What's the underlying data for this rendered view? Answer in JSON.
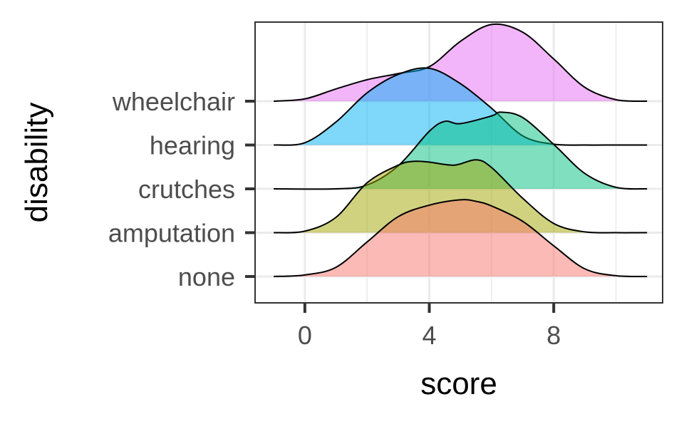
{
  "chart_data": {
    "type": "ridgeline",
    "xlabel": "score",
    "ylabel": "disability",
    "xlim": [
      -1.6,
      11.5
    ],
    "x_ticks": [
      0,
      4,
      8
    ],
    "grid": true,
    "categories": [
      "none",
      "amputation",
      "crutches",
      "hearing",
      "wheelchair"
    ],
    "series": [
      {
        "name": "none",
        "color": "#F8766D",
        "x": [
          -1.0,
          0.0,
          1.0,
          2.0,
          3.0,
          4.0,
          5.0,
          5.5,
          6.0,
          7.0,
          8.0,
          9.0,
          10.0,
          11.0
        ],
        "height": [
          0.0,
          0.02,
          0.12,
          0.45,
          0.78,
          0.93,
          1.0,
          0.98,
          0.92,
          0.72,
          0.4,
          0.1,
          0.01,
          0.0
        ]
      },
      {
        "name": "amputation",
        "color": "#A3A500",
        "x": [
          -1.0,
          0.0,
          1.0,
          2.0,
          3.0,
          3.5,
          4.0,
          4.8,
          5.5,
          6.0,
          7.0,
          8.0,
          9.0,
          10.0,
          11.0
        ],
        "height": [
          0.0,
          0.02,
          0.2,
          0.65,
          0.88,
          0.93,
          0.92,
          0.88,
          0.95,
          0.85,
          0.45,
          0.12,
          0.01,
          0.0,
          0.0
        ]
      },
      {
        "name": "crutches",
        "color": "#00BF7D",
        "x": [
          -1.0,
          1.0,
          2.0,
          3.0,
          4.0,
          4.5,
          5.0,
          6.0,
          6.3,
          7.0,
          8.0,
          9.0,
          10.0,
          11.0
        ],
        "height": [
          0.0,
          0.0,
          0.05,
          0.3,
          0.75,
          0.88,
          0.85,
          0.95,
          1.0,
          0.93,
          0.58,
          0.2,
          0.02,
          0.0
        ]
      },
      {
        "name": "hearing",
        "color": "#00B0F6",
        "x": [
          -1.0,
          0.0,
          1.0,
          2.0,
          3.0,
          4.0,
          5.0,
          6.0,
          7.0,
          8.0,
          9.0,
          10.0,
          11.0
        ],
        "height": [
          0.0,
          0.03,
          0.3,
          0.68,
          0.92,
          1.0,
          0.8,
          0.48,
          0.12,
          0.01,
          0.0,
          0.0,
          0.0
        ]
      },
      {
        "name": "wheelchair",
        "color": "#E76BF3",
        "x": [
          -1.0,
          0.0,
          1.0,
          2.0,
          3.0,
          4.0,
          5.0,
          6.0,
          7.0,
          8.0,
          9.0,
          10.0,
          11.0
        ],
        "height": [
          0.0,
          0.03,
          0.16,
          0.28,
          0.36,
          0.45,
          0.78,
          1.0,
          0.9,
          0.55,
          0.18,
          0.02,
          0.0
        ]
      }
    ],
    "ridge_scale": 1.75
  }
}
